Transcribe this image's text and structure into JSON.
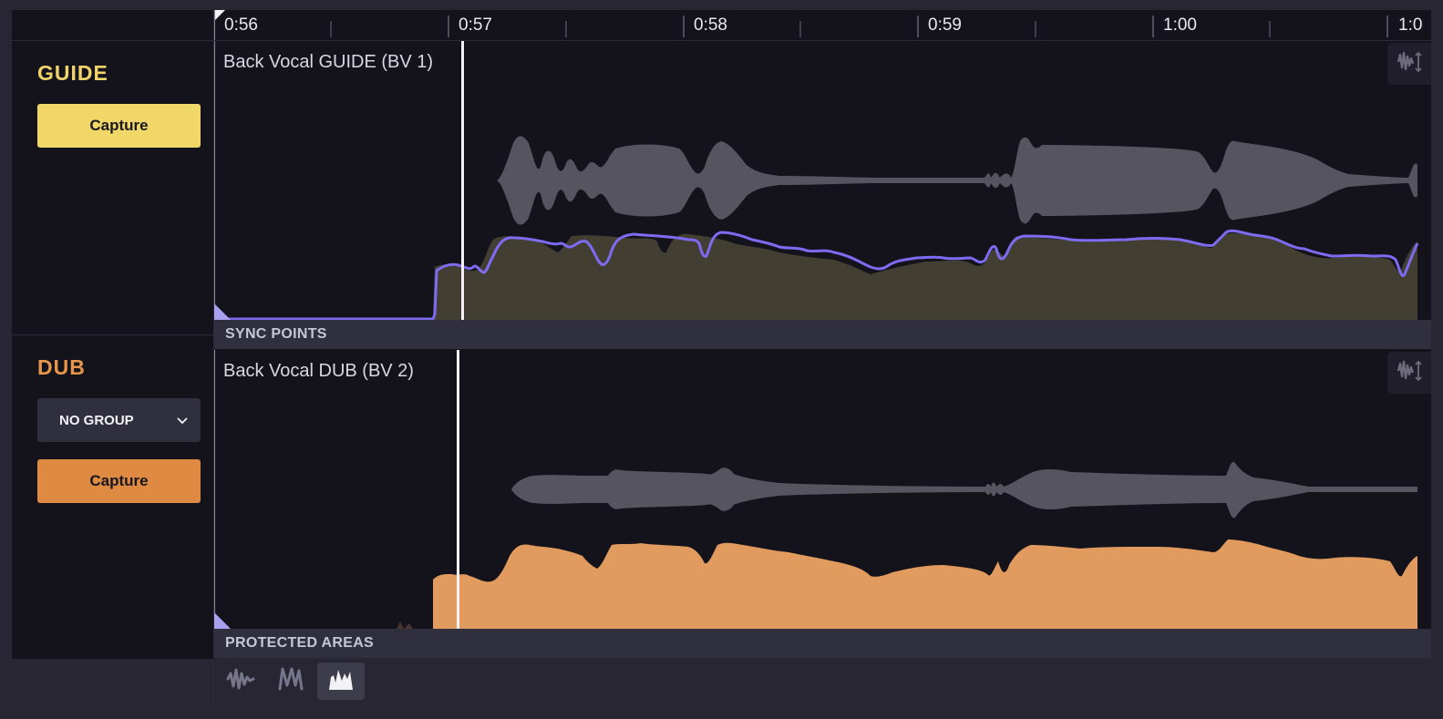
{
  "ruler": {
    "labels": [
      "0:56",
      "0:57",
      "0:58",
      "0:59",
      "1:00",
      "1:0"
    ]
  },
  "guide": {
    "title": "GUIDE",
    "capture_label": "Capture",
    "track_name": "Back Vocal GUIDE (BV 1)",
    "accent_color": "#f0d36b",
    "pitch_color": "#7d6cf2"
  },
  "sync_points": {
    "label": "SYNC POINTS"
  },
  "dub": {
    "title": "DUB",
    "group_value": "NO GROUP",
    "capture_label": "Capture",
    "track_name": "Back Vocal DUB (BV 2)",
    "accent_color": "#e19b5f"
  },
  "protected_areas": {
    "label": "PROTECTED AREAS"
  },
  "view_modes": {
    "items": [
      {
        "icon": "waveform-icon",
        "active": false
      },
      {
        "icon": "pitch-curve-icon",
        "active": false
      },
      {
        "icon": "energy-icon",
        "active": true
      }
    ]
  },
  "icons": {
    "scale": "waveform-scale-icon",
    "chevron": "chevron-down-icon"
  }
}
